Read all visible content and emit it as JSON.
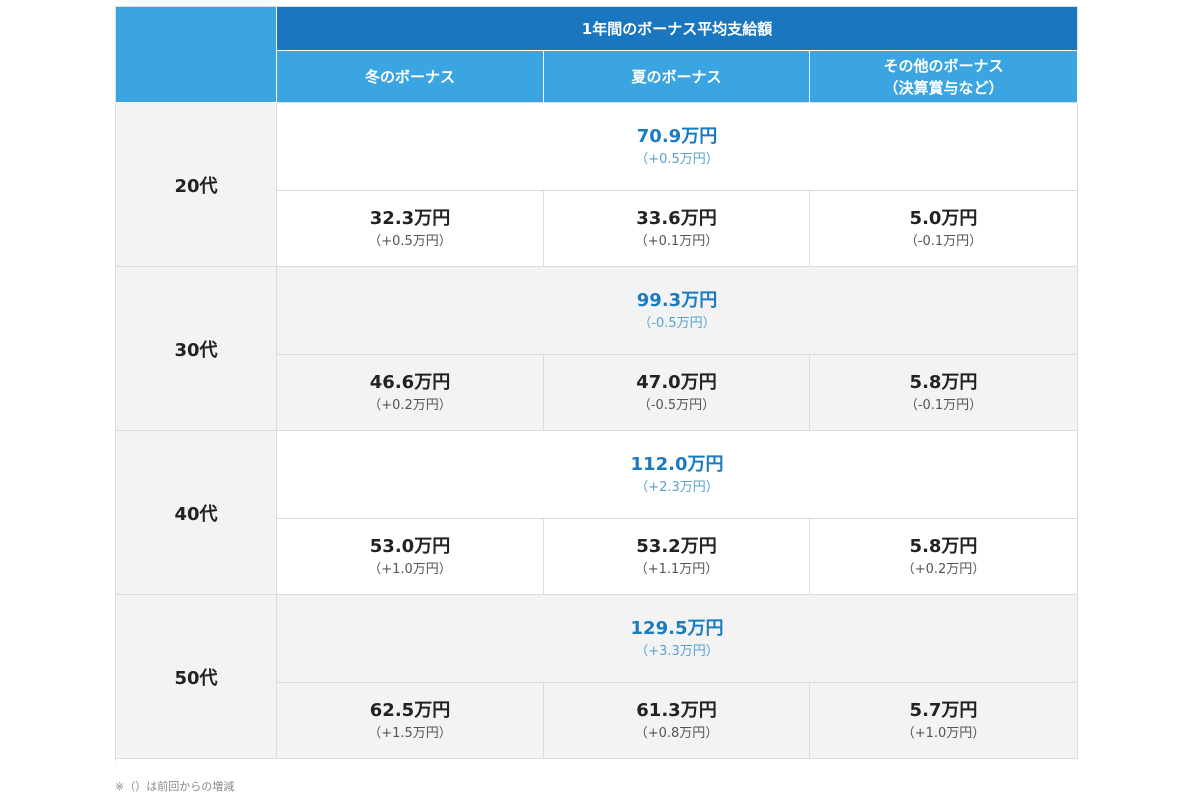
{
  "header": {
    "title": "1年間のボーナス平均支給額",
    "columns": [
      "冬のボーナス",
      "夏のボーナス",
      "その他のボーナス",
      "（決算賞与など）"
    ]
  },
  "rows": [
    {
      "age": "20代",
      "total": {
        "amount": "70.9万円",
        "change": "（+0.5万円）"
      },
      "winter": {
        "amount": "32.3万円",
        "change": "（+0.5万円）"
      },
      "summer": {
        "amount": "33.6万円",
        "change": "（+0.1万円）"
      },
      "other": {
        "amount": "5.0万円",
        "change": "（-0.1万円）"
      }
    },
    {
      "age": "30代",
      "total": {
        "amount": "99.3万円",
        "change": "（-0.5万円）"
      },
      "winter": {
        "amount": "46.6万円",
        "change": "（+0.2万円）"
      },
      "summer": {
        "amount": "47.0万円",
        "change": "（-0.5万円）"
      },
      "other": {
        "amount": "5.8万円",
        "change": "（-0.1万円）"
      }
    },
    {
      "age": "40代",
      "total": {
        "amount": "112.0万円",
        "change": "（+2.3万円）"
      },
      "winter": {
        "amount": "53.0万円",
        "change": "（+1.0万円）"
      },
      "summer": {
        "amount": "53.2万円",
        "change": "（+1.1万円）"
      },
      "other": {
        "amount": "5.8万円",
        "change": "（+0.2万円）"
      }
    },
    {
      "age": "50代",
      "total": {
        "amount": "129.5万円",
        "change": "（+3.3万円）"
      },
      "winter": {
        "amount": "62.5万円",
        "change": "（+1.5万円）"
      },
      "summer": {
        "amount": "61.3万円",
        "change": "（+0.8万円）"
      },
      "other": {
        "amount": "5.7万円",
        "change": "（+1.0万円）"
      }
    }
  ],
  "footnote": "※（）は前回からの増減",
  "colors": {
    "header_dark": "#1a76bf",
    "header_light": "#3aa5e0",
    "total_text": "#1a7cc0",
    "row_alt": "#f3f3f3"
  }
}
